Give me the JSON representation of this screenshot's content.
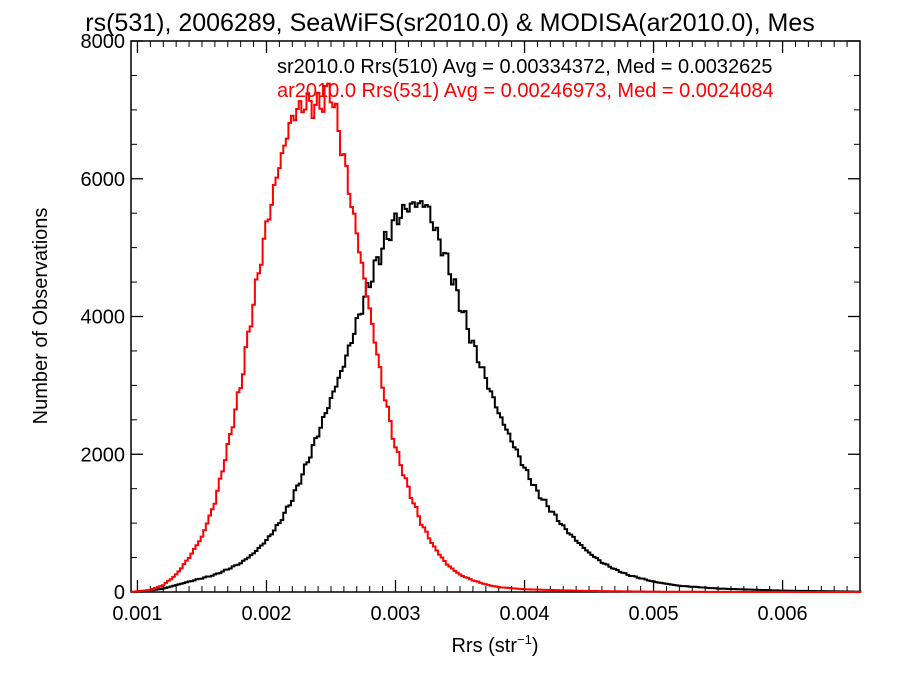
{
  "chart_data": {
    "type": "line",
    "title": "rs(531), 2006289, SeaWiFS(sr2010.0) & MODISA(ar2010.0), Mes",
    "xlabel": "Rrs (str",
    "xlabel_sup": "−1",
    "xlabel_close": ")",
    "ylabel": "Number of Observations",
    "xlim": [
      0.00095,
      0.0066
    ],
    "ylim": [
      0,
      8000
    ],
    "xticks": [
      {
        "value": 0.001,
        "label": "0.001"
      },
      {
        "value": 0.002,
        "label": "0.002"
      },
      {
        "value": 0.003,
        "label": "0.003"
      },
      {
        "value": 0.004,
        "label": "0.004"
      },
      {
        "value": 0.005,
        "label": "0.005"
      },
      {
        "value": 0.006,
        "label": "0.006"
      }
    ],
    "yticks": [
      {
        "value": 0,
        "label": "0"
      },
      {
        "value": 2000,
        "label": "2000"
      },
      {
        "value": 4000,
        "label": "4000"
      },
      {
        "value": 6000,
        "label": "6000"
      },
      {
        "value": 8000,
        "label": "8000"
      }
    ],
    "grid": false,
    "legend_placement": "top-right",
    "series": [
      {
        "name": "sr2010.0 Rrs(510) Avg = 0.00334372, Med = 0.0032625",
        "color": "#000000",
        "x": [
          0.00095,
          0.0011,
          0.0012,
          0.0013,
          0.0014,
          0.0015,
          0.0016,
          0.0017,
          0.0018,
          0.0019,
          0.002,
          0.0021,
          0.0022,
          0.0023,
          0.0024,
          0.0025,
          0.0026,
          0.0027,
          0.0028,
          0.0029,
          0.003,
          0.0031,
          0.0032,
          0.00325,
          0.0033,
          0.0034,
          0.0035,
          0.0036,
          0.0037,
          0.0038,
          0.0039,
          0.004,
          0.0041,
          0.0042,
          0.0043,
          0.0044,
          0.0045,
          0.0046,
          0.0047,
          0.0048,
          0.005,
          0.0052,
          0.0055,
          0.006,
          0.0066
        ],
        "y": [
          0,
          20,
          50,
          100,
          150,
          200,
          250,
          330,
          420,
          560,
          750,
          1000,
          1350,
          1800,
          2300,
          2800,
          3300,
          3900,
          4500,
          5000,
          5400,
          5600,
          5650,
          5600,
          5300,
          4800,
          4200,
          3600,
          3100,
          2600,
          2200,
          1800,
          1450,
          1200,
          950,
          750,
          570,
          430,
          330,
          250,
          150,
          90,
          50,
          20,
          5
        ]
      },
      {
        "name": "ar2010.0 Rrs(531) Avg = 0.00246973, Med = 0.0024084",
        "color": "#ff0000",
        "x": [
          0.00095,
          0.0011,
          0.0012,
          0.0013,
          0.0014,
          0.0015,
          0.0016,
          0.0017,
          0.0018,
          0.0019,
          0.002,
          0.0021,
          0.0022,
          0.0023,
          0.0024,
          0.0025,
          0.0026,
          0.0027,
          0.0028,
          0.0029,
          0.003,
          0.0031,
          0.0032,
          0.0033,
          0.0034,
          0.0035,
          0.0036,
          0.0037,
          0.0038,
          0.004,
          0.0045,
          0.005,
          0.0055,
          0.0066
        ],
        "y": [
          0,
          30,
          100,
          250,
          500,
          800,
          1300,
          2100,
          3000,
          4200,
          5300,
          6200,
          6900,
          7100,
          7050,
          7300,
          6300,
          5200,
          4100,
          3000,
          2100,
          1500,
          1000,
          650,
          400,
          250,
          170,
          110,
          70,
          40,
          15,
          5,
          2,
          0
        ]
      }
    ]
  }
}
